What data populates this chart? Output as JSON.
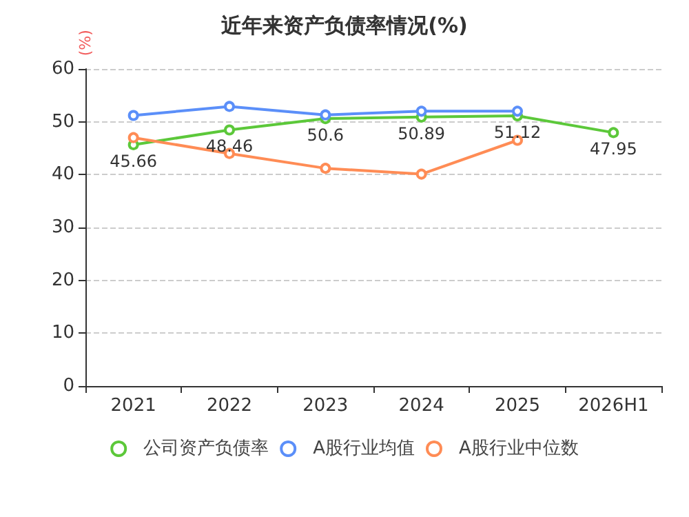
{
  "chart_data": {
    "type": "line",
    "title": "近年来资产负债率情况(%)",
    "ylabel": "(%)",
    "categories": [
      "2021",
      "2022",
      "2023",
      "2024",
      "2025",
      "2026H1"
    ],
    "series": [
      {
        "name": "公司资产负债率",
        "color": "#5cc83a",
        "values": [
          45.66,
          48.46,
          50.6,
          50.89,
          51.12,
          47.95
        ],
        "value_labels": [
          "45.66",
          "48.46",
          "50.6",
          "50.89",
          "51.12",
          "47.95"
        ]
      },
      {
        "name": "A股行业均值",
        "color": "#5b8ff9",
        "values": [
          51.2,
          52.9,
          51.3,
          52,
          52,
          null
        ]
      },
      {
        "name": "A股行业中位数",
        "color": "#ff8c55",
        "values": [
          47,
          44,
          41.2,
          40.1,
          46.5,
          null
        ]
      }
    ],
    "ylim": [
      0,
      60
    ],
    "yticks": [
      0,
      10,
      20,
      30,
      40,
      50,
      60
    ],
    "grid": "y",
    "legend": "bottom",
    "marker": "circle",
    "line_style": "solid"
  }
}
